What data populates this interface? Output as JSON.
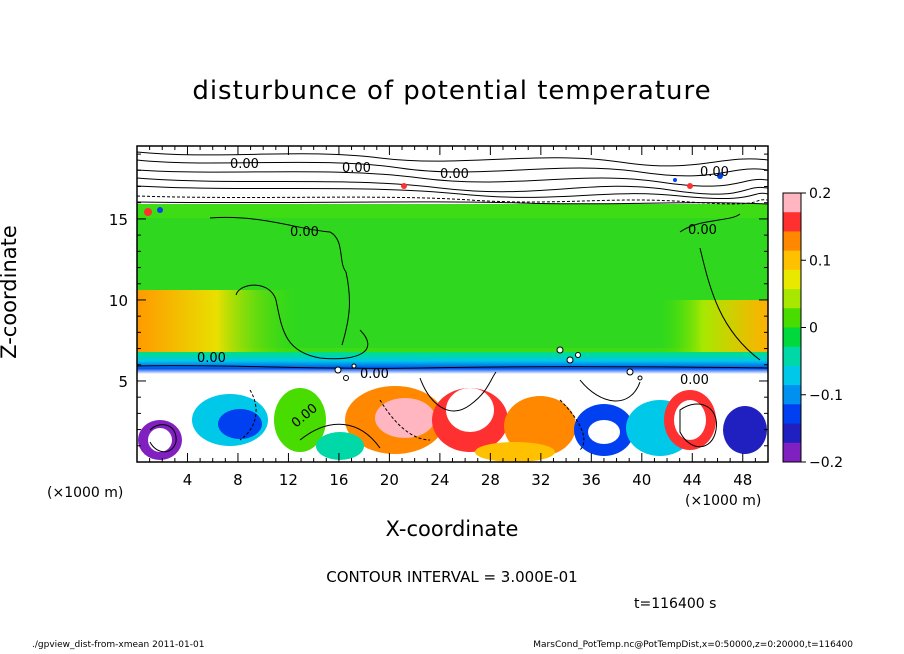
{
  "chart_data": {
    "type": "heatmap",
    "title": "disturbunce of potential temperature",
    "xlabel": "X-coordinate",
    "ylabel": "Z-coordinate",
    "x_unit": "(×1000 m)",
    "y_unit": "(×1000 m)",
    "xlim": [
      0,
      50
    ],
    "ylim": [
      0,
      19.5
    ],
    "xticks": [
      4,
      8,
      12,
      16,
      20,
      24,
      28,
      32,
      36,
      40,
      44,
      48
    ],
    "yticks": [
      5,
      10,
      15
    ],
    "colorbar": {
      "ticks": [
        "0.2",
        "0.1",
        "0",
        "−0.1",
        "−0.2"
      ],
      "range": [
        -0.2,
        0.2
      ],
      "colors": [
        "#ffb6c1",
        "#ff3030",
        "#ff8800",
        "#ffc000",
        "#e8e800",
        "#a8e800",
        "#48dc00",
        "#00d83c",
        "#00d8a8",
        "#00c8e8",
        "#0090f0",
        "#0040f0",
        "#2020c0",
        "#8020c0"
      ]
    },
    "contour_labels": [
      "0.00",
      "0.00",
      "0.00",
      "0.00",
      "0.00",
      "0.00",
      "0.00",
      "0.00",
      "0.00",
      "0.00"
    ],
    "contour_interval": "CONTOUR INTERVAL = 3.000E-01",
    "time": "t=116400 s",
    "footer_left": "./gpview_dist-from-xmean   2011-01-01",
    "footer_right": "MarsCond_PotTemp.nc@PotTempDist,x=0:50000,z=0:20000,t=116400"
  }
}
